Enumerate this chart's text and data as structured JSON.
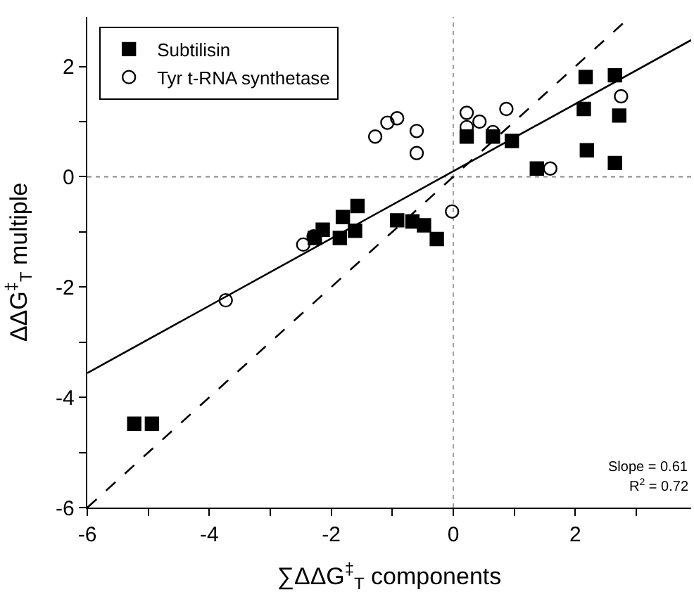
{
  "chart_data": {
    "type": "scatter",
    "xlabel": "∑ΔΔG$^{‡}$$_{T}$ components",
    "ylabel": "ΔΔG$^{‡}$$_{T}$ multiple",
    "xlim": [
      -6,
      3.9
    ],
    "ylim": [
      -6,
      2.9
    ],
    "xticks": [
      -6,
      {
        "value": -5,
        "label": null
      },
      -4,
      {
        "value": -3,
        "label": null
      },
      -2,
      {
        "value": -1,
        "label": null
      },
      0,
      {
        "value": 1,
        "label": null
      },
      2,
      {
        "value": 3,
        "label": null
      }
    ],
    "yticks": [
      -6,
      {
        "value": -5,
        "label": null
      },
      -4,
      {
        "value": -3,
        "label": null
      },
      -2,
      {
        "value": -1,
        "label": null
      },
      0,
      {
        "value": 1,
        "label": null
      },
      2
    ],
    "grid": false,
    "legend": "top left",
    "series": [
      {
        "name": "Subtilisin",
        "color": "#000000",
        "marker": "square",
        "x": [
          -5.23,
          -4.94,
          -2.27,
          -2.14,
          -1.86,
          -1.81,
          -1.61,
          -1.57,
          -0.92,
          -0.67,
          -0.48,
          -0.27,
          0.22,
          0.65,
          0.96,
          1.37,
          2.14,
          2.17,
          2.19,
          2.65,
          2.65,
          2.72
        ],
        "values": [
          -4.48,
          -4.48,
          -1.11,
          -0.96,
          -1.11,
          -0.73,
          -0.98,
          -0.53,
          -0.79,
          -0.81,
          -0.88,
          -1.13,
          0.73,
          0.73,
          0.65,
          0.15,
          1.23,
          1.81,
          0.48,
          1.84,
          0.25,
          1.11
        ]
      },
      {
        "name": "Tyr t-RNA synthetase",
        "color": "#000000",
        "marker": "circle",
        "x": [
          -3.73,
          -2.46,
          -2.29,
          -1.28,
          -1.08,
          -0.92,
          -0.6,
          -0.6,
          -0.02,
          0.22,
          0.22,
          0.43,
          0.65,
          0.87,
          1.59,
          2.75
        ],
        "values": [
          -2.24,
          -1.23,
          -1.08,
          0.73,
          0.98,
          1.06,
          0.83,
          0.43,
          -0.63,
          1.16,
          0.9,
          1.0,
          0.81,
          1.23,
          0.15,
          1.46
        ]
      },
      {
        "type": "line",
        "color": "#000000",
        "line_style": "solid",
        "marker": "none",
        "x": [
          -6,
          3.9
        ],
        "values": [
          -3.56,
          2.48
        ]
      },
      {
        "type": "line",
        "color": "#000000",
        "line_style": "dashed",
        "marker": "none",
        "x": [
          -6,
          2.9
        ],
        "values": [
          -6,
          2.9
        ]
      }
    ],
    "ref_lines": [
      {
        "axis": "x",
        "value": 0,
        "color": "#a0a0a0",
        "line_style": "dotted"
      },
      {
        "axis": "y",
        "value": 0,
        "color": "#888888",
        "line_style": "dotted"
      }
    ],
    "annotations": [
      "Slope = 0.61",
      "R$^{2}$ = 0.72"
    ]
  }
}
